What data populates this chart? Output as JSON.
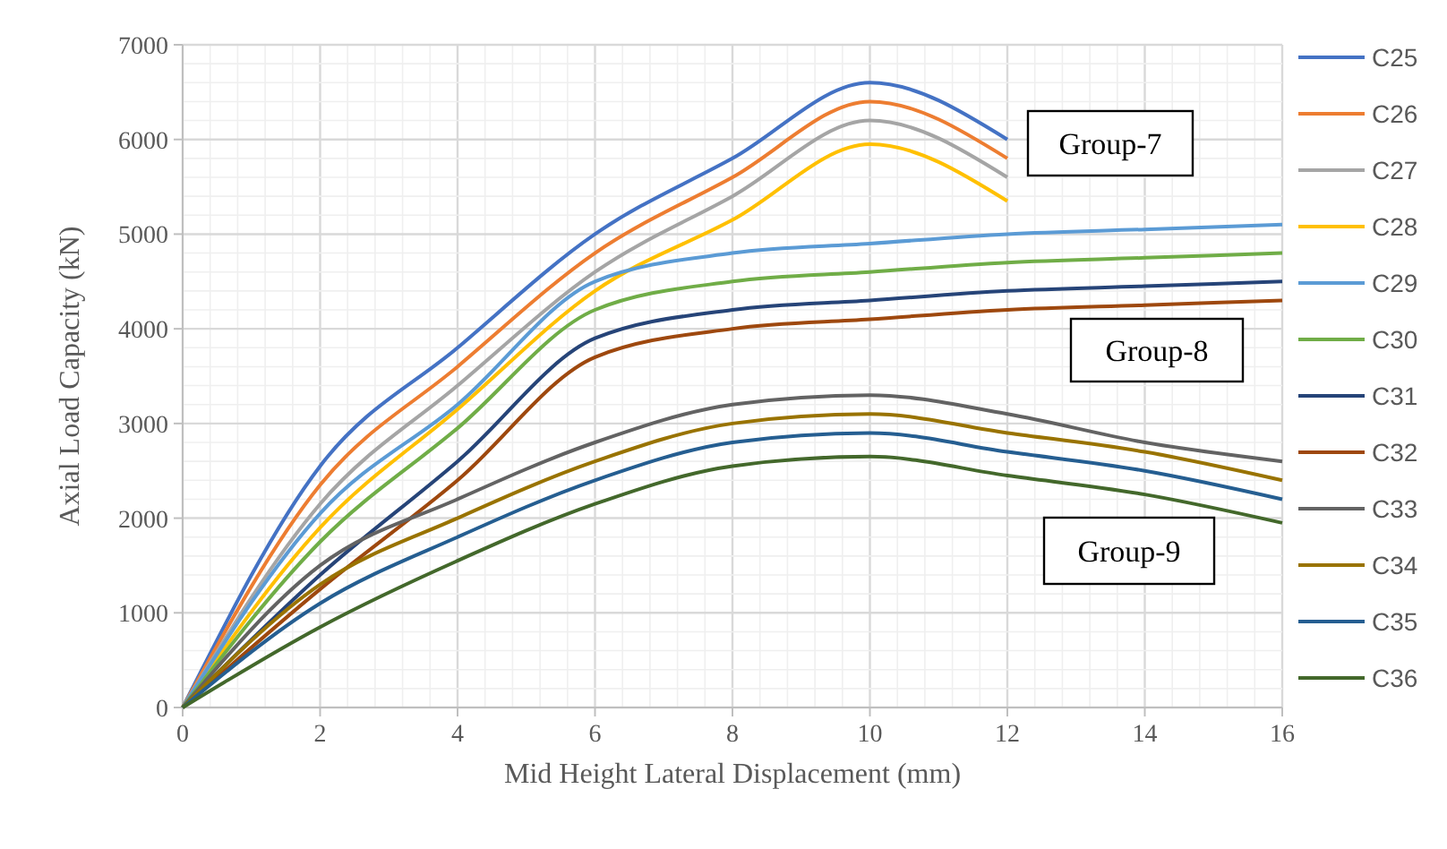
{
  "chart_data": {
    "type": "line",
    "xlabel": "Mid Height Lateral Displacement (mm)",
    "ylabel": "Axial Load Capacity (kN)",
    "x": [
      0,
      2,
      4,
      6,
      8,
      10,
      12,
      14,
      16
    ],
    "xlim": [
      0,
      16
    ],
    "xticks": [
      0,
      2,
      4,
      6,
      8,
      10,
      12,
      14,
      16
    ],
    "ylim": [
      0,
      7000
    ],
    "yticks": [
      0,
      1000,
      2000,
      3000,
      4000,
      5000,
      6000,
      7000
    ],
    "grid": true,
    "legend": "right",
    "marker": "none",
    "line_style": "solid",
    "annotations": [
      "Group-7",
      "Group-8",
      "Group-9"
    ],
    "series": [
      {
        "name": "C25",
        "color": "#4472c4",
        "values": [
          0,
          2550,
          3800,
          5000,
          5800,
          6600,
          6000,
          null,
          null
        ]
      },
      {
        "name": "C26",
        "color": "#ed7d31",
        "values": [
          0,
          2350,
          3600,
          4800,
          5600,
          6400,
          5800,
          null,
          null
        ]
      },
      {
        "name": "C27",
        "color": "#a5a5a5",
        "values": [
          0,
          2150,
          3400,
          4600,
          5400,
          6200,
          5600,
          null,
          null
        ]
      },
      {
        "name": "C28",
        "color": "#ffc000",
        "values": [
          0,
          1900,
          3150,
          4400,
          5150,
          5950,
          5350,
          null,
          null
        ]
      },
      {
        "name": "C29",
        "color": "#5b9bd5",
        "values": [
          0,
          2050,
          3200,
          4500,
          4800,
          4900,
          5000,
          5050,
          5100
        ]
      },
      {
        "name": "C30",
        "color": "#70ad47",
        "values": [
          0,
          1750,
          2950,
          4200,
          4500,
          4600,
          4700,
          4750,
          4800
        ]
      },
      {
        "name": "C31",
        "color": "#264478",
        "values": [
          0,
          1400,
          2600,
          3900,
          4200,
          4300,
          4400,
          4450,
          4500
        ]
      },
      {
        "name": "C32",
        "color": "#9e480e",
        "values": [
          0,
          1250,
          2400,
          3700,
          4000,
          4100,
          4200,
          4250,
          4300
        ]
      },
      {
        "name": "C33",
        "color": "#636363",
        "values": [
          0,
          1500,
          2200,
          2800,
          3200,
          3300,
          3100,
          2800,
          2600
        ]
      },
      {
        "name": "C34",
        "color": "#997300",
        "values": [
          0,
          1300,
          2000,
          2600,
          3000,
          3100,
          2900,
          2700,
          2400
        ]
      },
      {
        "name": "C35",
        "color": "#255e91",
        "values": [
          0,
          1100,
          1800,
          2400,
          2800,
          2900,
          2700,
          2500,
          2200
        ]
      },
      {
        "name": "C36",
        "color": "#43682b",
        "values": [
          0,
          850,
          1550,
          2150,
          2550,
          2650,
          2450,
          2250,
          1950
        ]
      }
    ]
  }
}
